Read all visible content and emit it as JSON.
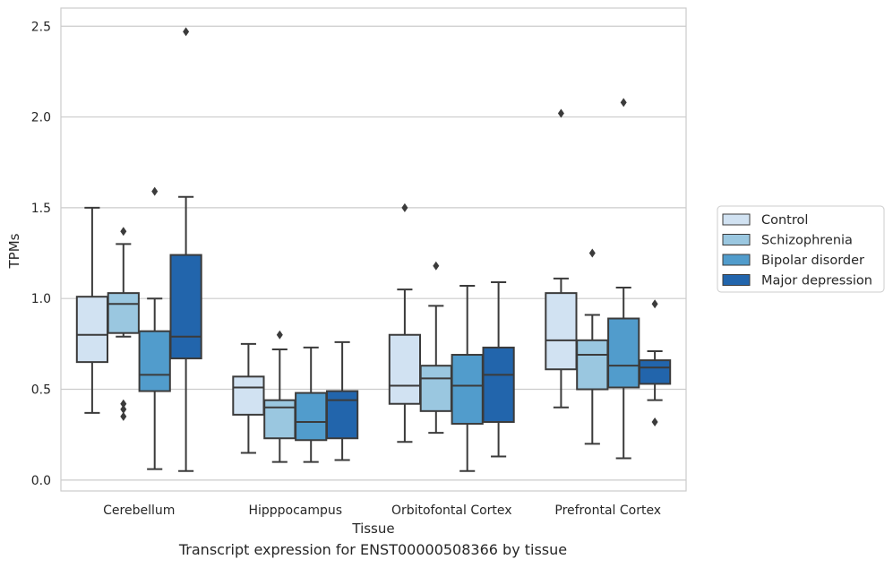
{
  "caption": "Transcript expression for ENST00000508366 by tissue",
  "chart_data": {
    "type": "box",
    "xlabel": "Tissue",
    "ylabel": "TPMs",
    "ylim": [
      -0.06,
      2.6
    ],
    "yticks": [
      0.0,
      0.5,
      1.0,
      1.5,
      2.0,
      2.5
    ],
    "ytick_labels": [
      "0.0",
      "0.5",
      "1.0",
      "1.5",
      "2.0",
      "2.5"
    ],
    "grid": "horizontal",
    "legend_position": "right",
    "categories": [
      "Cerebellum",
      "Hipppocampus",
      "Orbitofontal Cortex",
      "Prefrontal Cortex"
    ],
    "colors": [
      "#d1e2f2",
      "#9ac7e0",
      "#519ccc",
      "#2265ac"
    ],
    "series": [
      {
        "name": "Control",
        "boxes": [
          {
            "whislo": 0.37,
            "q1": 0.65,
            "med": 0.8,
            "q3": 1.01,
            "whishi": 1.5,
            "fliers": []
          },
          {
            "whislo": 0.15,
            "q1": 0.36,
            "med": 0.51,
            "q3": 0.57,
            "whishi": 0.75,
            "fliers": []
          },
          {
            "whislo": 0.21,
            "q1": 0.42,
            "med": 0.52,
            "q3": 0.8,
            "whishi": 1.05,
            "fliers": [
              1.5
            ]
          },
          {
            "whislo": 0.4,
            "q1": 0.61,
            "med": 0.77,
            "q3": 1.03,
            "whishi": 1.11,
            "fliers": [
              2.02
            ]
          }
        ]
      },
      {
        "name": "Schizophrenia",
        "boxes": [
          {
            "whislo": 0.79,
            "q1": 0.81,
            "med": 0.97,
            "q3": 1.03,
            "whishi": 1.3,
            "fliers": [
              1.37,
              0.42,
              0.39,
              0.35
            ]
          },
          {
            "whislo": 0.1,
            "q1": 0.23,
            "med": 0.4,
            "q3": 0.44,
            "whishi": 0.72,
            "fliers": [
              0.8
            ]
          },
          {
            "whislo": 0.26,
            "q1": 0.38,
            "med": 0.56,
            "q3": 0.63,
            "whishi": 0.96,
            "fliers": [
              1.18
            ]
          },
          {
            "whislo": 0.2,
            "q1": 0.5,
            "med": 0.69,
            "q3": 0.77,
            "whishi": 0.91,
            "fliers": [
              1.25
            ]
          }
        ]
      },
      {
        "name": "Bipolar disorder",
        "boxes": [
          {
            "whislo": 0.06,
            "q1": 0.49,
            "med": 0.58,
            "q3": 0.82,
            "whishi": 1.0,
            "fliers": [
              1.59
            ]
          },
          {
            "whislo": 0.1,
            "q1": 0.22,
            "med": 0.32,
            "q3": 0.48,
            "whishi": 0.73,
            "fliers": []
          },
          {
            "whislo": 0.05,
            "q1": 0.31,
            "med": 0.52,
            "q3": 0.69,
            "whishi": 1.07,
            "fliers": []
          },
          {
            "whislo": 0.12,
            "q1": 0.51,
            "med": 0.63,
            "q3": 0.89,
            "whishi": 1.06,
            "fliers": [
              2.08
            ]
          }
        ]
      },
      {
        "name": "Major depression",
        "boxes": [
          {
            "whislo": 0.05,
            "q1": 0.67,
            "med": 0.79,
            "q3": 1.24,
            "whishi": 1.56,
            "fliers": [
              2.47
            ]
          },
          {
            "whislo": 0.11,
            "q1": 0.23,
            "med": 0.44,
            "q3": 0.49,
            "whishi": 0.76,
            "fliers": []
          },
          {
            "whislo": 0.13,
            "q1": 0.32,
            "med": 0.58,
            "q3": 0.73,
            "whishi": 1.09,
            "fliers": []
          },
          {
            "whislo": 0.44,
            "q1": 0.53,
            "med": 0.62,
            "q3": 0.66,
            "whishi": 0.71,
            "fliers": [
              0.97,
              0.32
            ]
          }
        ]
      }
    ]
  }
}
